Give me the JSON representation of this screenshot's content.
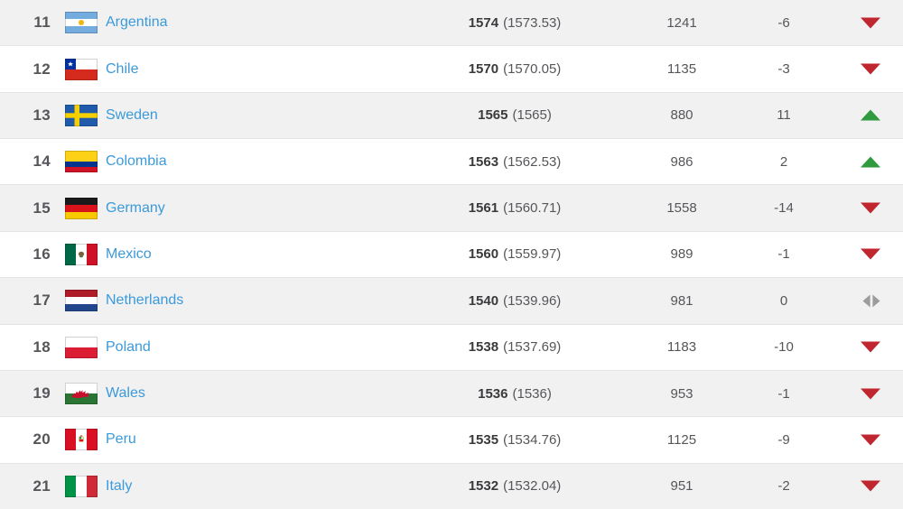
{
  "colors": {
    "link_blue": "#3b9ad9",
    "trend_down_red": "#c0262d",
    "trend_up_green": "#2f9b3e",
    "trend_equal_gray": "#9c9c9c",
    "shaded_row_bg": "#f1f1f2",
    "row_border": "#e4e4e4",
    "rank_text": "#55565a"
  },
  "table": {
    "rows": [
      {
        "rank": "11",
        "country": "Argentina",
        "flag": "argentina",
        "points": "1574",
        "points_avg": "(1573.53)",
        "total": "1241",
        "change": "-6",
        "trend": "down"
      },
      {
        "rank": "12",
        "country": "Chile",
        "flag": "chile",
        "points": "1570",
        "points_avg": "(1570.05)",
        "total": "1135",
        "change": "-3",
        "trend": "down"
      },
      {
        "rank": "13",
        "country": "Sweden",
        "flag": "sweden",
        "points": "1565",
        "points_avg": "(1565)",
        "total": "880",
        "change": "11",
        "trend": "up"
      },
      {
        "rank": "14",
        "country": "Colombia",
        "flag": "colombia",
        "points": "1563",
        "points_avg": "(1562.53)",
        "total": "986",
        "change": "2",
        "trend": "up"
      },
      {
        "rank": "15",
        "country": "Germany",
        "flag": "germany",
        "points": "1561",
        "points_avg": "(1560.71)",
        "total": "1558",
        "change": "-14",
        "trend": "down"
      },
      {
        "rank": "16",
        "country": "Mexico",
        "flag": "mexico",
        "points": "1560",
        "points_avg": "(1559.97)",
        "total": "989",
        "change": "-1",
        "trend": "down"
      },
      {
        "rank": "17",
        "country": "Netherlands",
        "flag": "netherlands",
        "points": "1540",
        "points_avg": "(1539.96)",
        "total": "981",
        "change": "0",
        "trend": "equal"
      },
      {
        "rank": "18",
        "country": "Poland",
        "flag": "poland",
        "points": "1538",
        "points_avg": "(1537.69)",
        "total": "1183",
        "change": "-10",
        "trend": "down"
      },
      {
        "rank": "19",
        "country": "Wales",
        "flag": "wales",
        "points": "1536",
        "points_avg": "(1536)",
        "total": "953",
        "change": "-1",
        "trend": "down"
      },
      {
        "rank": "20",
        "country": "Peru",
        "flag": "peru",
        "points": "1535",
        "points_avg": "(1534.76)",
        "total": "1125",
        "change": "-9",
        "trend": "down"
      },
      {
        "rank": "21",
        "country": "Italy",
        "flag": "italy",
        "points": "1532",
        "points_avg": "(1532.04)",
        "total": "951",
        "change": "-2",
        "trend": "down"
      }
    ]
  }
}
